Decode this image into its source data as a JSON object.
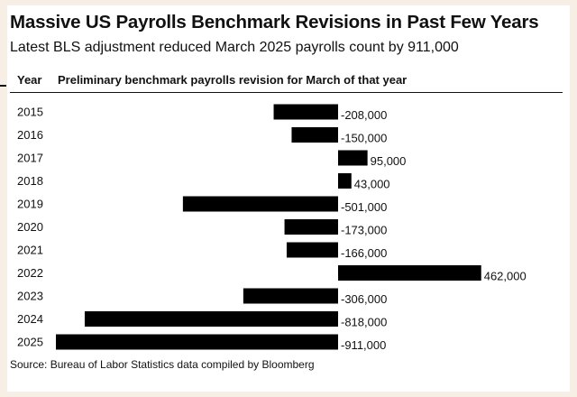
{
  "chart_data": {
    "type": "bar",
    "orientation": "horizontal",
    "title": "Massive US Payrolls Benchmark Revisions in Past Few Years",
    "subtitle": "Latest BLS adjustment reduced March 2025 payrolls count by 911,000",
    "column_headers": {
      "year": "Year",
      "revision": "Preliminary benchmark payrolls revision for March of that year"
    },
    "categories": [
      "2015",
      "2016",
      "2017",
      "2018",
      "2019",
      "2020",
      "2021",
      "2022",
      "2023",
      "2024",
      "2025"
    ],
    "values": [
      -208000,
      -150000,
      95000,
      43000,
      -501000,
      -173000,
      -166000,
      462000,
      -306000,
      -818000,
      -911000
    ],
    "value_labels": [
      "-208,000",
      "-150,000",
      "95,000",
      "43,000",
      "-501,000",
      "-173,000",
      "-166,000",
      "462,000",
      "-306,000",
      "-818,000",
      "-911,000"
    ],
    "xlim": [
      -911000,
      462000
    ],
    "grid": false,
    "bar_color": "#000000",
    "source": "Source: Bureau of Labor Statistics data compiled by Bloomberg"
  }
}
